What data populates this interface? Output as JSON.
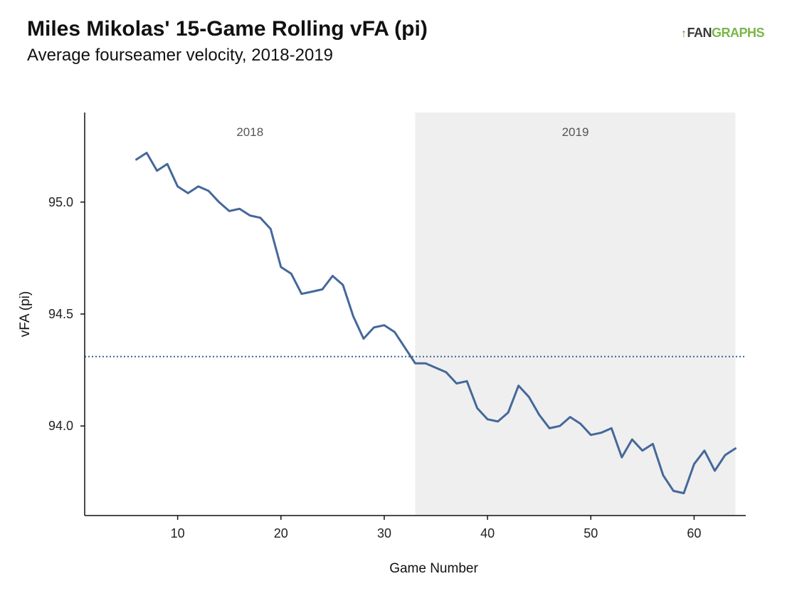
{
  "header": {
    "title": "Miles Mikolas' 15-Game Rolling vFA (pi)",
    "subtitle": "Average fourseamer velocity, 2018-2019",
    "logo_fan": "FAN",
    "logo_graphs": "GRAPHS"
  },
  "chart_data": {
    "type": "line",
    "title": "Miles Mikolas' 15-Game Rolling vFA (pi)",
    "subtitle": "Average fourseamer velocity, 2018-2019",
    "xlabel": "Game Number",
    "ylabel": "vFA (pi)",
    "xlim": [
      1,
      65
    ],
    "ylim": [
      93.6,
      95.4
    ],
    "xticks": [
      10,
      20,
      30,
      40,
      50,
      60
    ],
    "yticks": [
      94.0,
      94.5,
      95.0
    ],
    "ytick_labels": [
      "94.0",
      "94.5",
      "95.0"
    ],
    "grid": false,
    "reference_line": {
      "y": 94.31,
      "style": "dotted",
      "color": "#3e6391"
    },
    "regions": [
      {
        "label": "2018",
        "x_start": 1,
        "x_end": 33,
        "shaded": false
      },
      {
        "label": "2019",
        "x_start": 33,
        "x_end": 64,
        "shaded": true,
        "color": "#efefef"
      }
    ],
    "series": [
      {
        "color": "#45689a",
        "x": [
          6,
          7,
          8,
          9,
          10,
          11,
          12,
          13,
          14,
          15,
          16,
          17,
          18,
          19,
          20,
          21,
          22,
          23,
          24,
          25,
          26,
          27,
          28,
          29,
          30,
          31,
          32,
          33,
          34,
          35,
          36,
          37,
          38,
          39,
          40,
          41,
          42,
          43,
          44,
          45,
          46,
          47,
          48,
          49,
          50,
          51,
          52,
          53,
          54,
          55,
          56,
          57,
          58,
          59,
          60,
          61,
          62,
          63,
          64
        ],
        "y": [
          95.19,
          95.22,
          95.14,
          95.17,
          95.07,
          95.04,
          95.07,
          95.05,
          95.0,
          94.96,
          94.97,
          94.94,
          94.93,
          94.88,
          94.71,
          94.68,
          94.59,
          94.6,
          94.61,
          94.67,
          94.63,
          94.49,
          94.39,
          94.44,
          94.45,
          94.42,
          94.35,
          94.28,
          94.28,
          94.26,
          94.24,
          94.19,
          94.2,
          94.08,
          94.03,
          94.02,
          94.06,
          94.18,
          94.13,
          94.05,
          93.99,
          94.0,
          94.04,
          94.01,
          93.96,
          93.97,
          93.99,
          93.86,
          93.94,
          93.89,
          93.92,
          93.78,
          93.71,
          93.7,
          93.83,
          93.89,
          93.8,
          93.87,
          93.9
        ]
      }
    ]
  }
}
